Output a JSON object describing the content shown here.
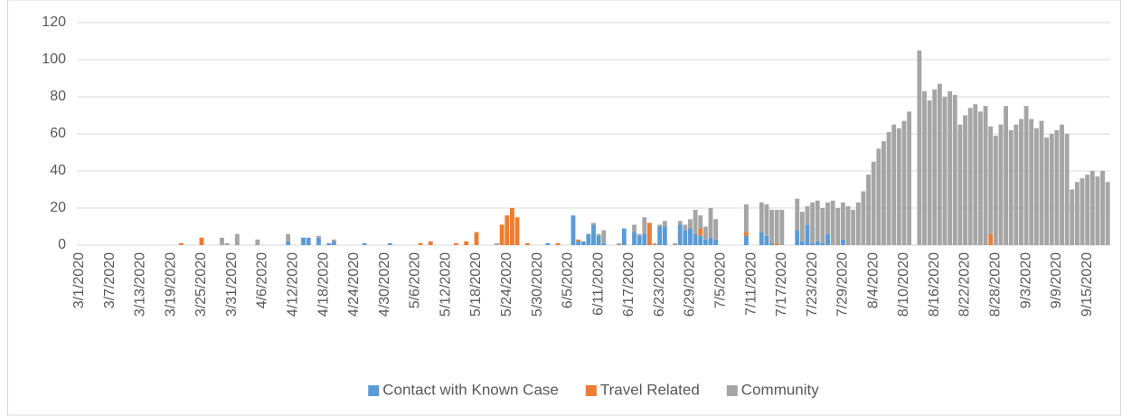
{
  "chart_data": {
    "type": "stacked_bar",
    "categories": [
      "3/1/2020",
      null,
      null,
      null,
      null,
      null,
      "3/7/2020",
      null,
      null,
      null,
      null,
      null,
      "3/13/2020",
      null,
      null,
      null,
      null,
      null,
      "3/19/2020",
      null,
      null,
      null,
      null,
      null,
      "3/25/2020",
      null,
      null,
      null,
      null,
      null,
      "3/31/2020",
      null,
      null,
      null,
      null,
      null,
      "4/6/2020",
      null,
      null,
      null,
      null,
      null,
      "4/12/2020",
      null,
      null,
      null,
      null,
      null,
      "4/18/2020",
      null,
      null,
      null,
      null,
      null,
      "4/24/2020",
      null,
      null,
      null,
      null,
      null,
      "4/30/2020",
      null,
      null,
      null,
      null,
      null,
      "5/6/2020",
      null,
      null,
      null,
      null,
      null,
      "5/12/2020",
      null,
      null,
      null,
      null,
      null,
      "5/18/2020",
      null,
      null,
      null,
      null,
      null,
      "5/24/2020",
      null,
      null,
      null,
      null,
      null,
      "5/30/2020",
      null,
      null,
      null,
      null,
      null,
      "6/5/2020",
      null,
      null,
      null,
      null,
      null,
      "6/11/2020",
      null,
      null,
      null,
      null,
      null,
      "6/17/2020",
      null,
      null,
      null,
      null,
      null,
      "6/23/2020",
      null,
      null,
      null,
      null,
      null,
      "6/29/2020",
      null,
      null,
      null,
      null,
      null,
      "7/5/2020",
      null,
      null,
      null,
      null,
      null,
      "7/11/2020",
      null,
      null,
      null,
      null,
      null,
      "7/17/2020",
      null,
      null,
      null,
      null,
      null,
      "7/23/2020",
      null,
      null,
      null,
      null,
      null,
      "7/29/2020",
      null,
      null,
      null,
      null,
      null,
      "8/4/2020",
      null,
      null,
      null,
      null,
      null,
      "8/10/2020",
      null,
      null,
      null,
      null,
      null,
      "8/16/2020",
      null,
      null,
      null,
      null,
      null,
      "8/22/2020",
      null,
      null,
      null,
      null,
      null,
      "8/28/2020",
      null,
      null,
      null,
      null,
      null,
      "9/3/2020",
      null,
      null,
      null,
      null,
      null,
      "9/9/2020",
      null,
      null,
      null,
      null,
      null,
      "9/15/2020",
      null,
      null,
      null,
      null
    ],
    "series": [
      {
        "name": "Contact with Known Case",
        "color": "#5b9bd5",
        "values": [
          0,
          0,
          0,
          0,
          0,
          0,
          0,
          0,
          0,
          0,
          0,
          0,
          0,
          0,
          0,
          0,
          0,
          0,
          0,
          0,
          0,
          0,
          0,
          0,
          0,
          0,
          0,
          0,
          0,
          0,
          0,
          0,
          0,
          0,
          0,
          0,
          0,
          0,
          0,
          0,
          0,
          2,
          0,
          0,
          4,
          4,
          0,
          4,
          0,
          1,
          2,
          0,
          0,
          0,
          0,
          0,
          1,
          0,
          0,
          0,
          0,
          1,
          0,
          0,
          0,
          0,
          0,
          0,
          0,
          0,
          0,
          0,
          0,
          0,
          0,
          0,
          0,
          0,
          0,
          0,
          0,
          0,
          0,
          0,
          0,
          0,
          0,
          0,
          0,
          0,
          0,
          0,
          1,
          0,
          0,
          0,
          0,
          16,
          2,
          2,
          6,
          11,
          5,
          1,
          0,
          0,
          0,
          9,
          0,
          7,
          5,
          6,
          0,
          0,
          10,
          10,
          0,
          0,
          11,
          8,
          9,
          6,
          5,
          3,
          4,
          3,
          0,
          0,
          0,
          0,
          0,
          5,
          0,
          0,
          7,
          5,
          1,
          0,
          0,
          0,
          0,
          8,
          2,
          11,
          1,
          2,
          1,
          6,
          0,
          0,
          3,
          0,
          0,
          0,
          0,
          0,
          0,
          0,
          0,
          0,
          0,
          0,
          0,
          0,
          0,
          0,
          0,
          0,
          0,
          0,
          0,
          0,
          0,
          0,
          0,
          0,
          0,
          0,
          0,
          0,
          0,
          0,
          0,
          0,
          0,
          0,
          0,
          0,
          0,
          0,
          0,
          0,
          0,
          0,
          0,
          0,
          0,
          0,
          0,
          0,
          0,
          0,
          0
        ]
      },
      {
        "name": "Travel Related",
        "color": "#ed7d31",
        "values": [
          0,
          0,
          0,
          0,
          0,
          0,
          0,
          0,
          0,
          0,
          0,
          0,
          0,
          0,
          0,
          0,
          0,
          0,
          0,
          0,
          1,
          0,
          0,
          0,
          4,
          0,
          0,
          0,
          0,
          0,
          0,
          0,
          0,
          0,
          0,
          0,
          0,
          0,
          0,
          0,
          0,
          0,
          0,
          0,
          0,
          0,
          0,
          0,
          0,
          0,
          0,
          0,
          0,
          0,
          0,
          0,
          0,
          0,
          0,
          0,
          0,
          0,
          0,
          0,
          0,
          0,
          0,
          1,
          0,
          2,
          0,
          0,
          0,
          0,
          1,
          0,
          2,
          0,
          7,
          0,
          0,
          0,
          0,
          11,
          16,
          20,
          15,
          0,
          1,
          0,
          0,
          0,
          0,
          0,
          1,
          0,
          0,
          0,
          1,
          0,
          0,
          0,
          0,
          0,
          0,
          0,
          0,
          0,
          0,
          0,
          0,
          0,
          12,
          0,
          0,
          0,
          0,
          0,
          0,
          0,
          0,
          0,
          4,
          0,
          0,
          0,
          0,
          0,
          0,
          0,
          0,
          2,
          0,
          0,
          0,
          0,
          0,
          1,
          0,
          0,
          0,
          0,
          0,
          0,
          0,
          0,
          0,
          0,
          0,
          0,
          0,
          0,
          0,
          0,
          0,
          0,
          0,
          0,
          0,
          0,
          0,
          0,
          0,
          0,
          0,
          0,
          0,
          0,
          0,
          0,
          0,
          0,
          0,
          0,
          0,
          0,
          0,
          0,
          0,
          6,
          0,
          0,
          0,
          0,
          0,
          0,
          0,
          0,
          0,
          0,
          0,
          0,
          0,
          0,
          0,
          0,
          0,
          0,
          0,
          0,
          0,
          0,
          0
        ]
      },
      {
        "name": "Community",
        "color": "#a5a5a5",
        "values": [
          0,
          0,
          0,
          0,
          0,
          0,
          0,
          0,
          0,
          0,
          0,
          0,
          0,
          0,
          0,
          0,
          0,
          0,
          0,
          0,
          0,
          0,
          0,
          0,
          0,
          0,
          0,
          0,
          4,
          1,
          0,
          6,
          0,
          0,
          0,
          3,
          0,
          0,
          0,
          0,
          0,
          4,
          0,
          0,
          0,
          0,
          0,
          1,
          0,
          0,
          1,
          0,
          0,
          0,
          0,
          0,
          0,
          0,
          0,
          0,
          0,
          0,
          0,
          0,
          0,
          0,
          0,
          0,
          0,
          0,
          0,
          0,
          0,
          0,
          0,
          0,
          0,
          0,
          0,
          0,
          0,
          0,
          1,
          0,
          0,
          0,
          0,
          0,
          0,
          0,
          0,
          0,
          0,
          0,
          0,
          0,
          0,
          0,
          0,
          0,
          0,
          1,
          1,
          7,
          0,
          0,
          1,
          0,
          0,
          4,
          1,
          9,
          0,
          1,
          1,
          3,
          0,
          1,
          2,
          3,
          5,
          13,
          7,
          7,
          16,
          11,
          0,
          0,
          0,
          0,
          0,
          15,
          0,
          0,
          16,
          17,
          18,
          18,
          19,
          0,
          0,
          17,
          16,
          10,
          22,
          22,
          19,
          17,
          24,
          20,
          20,
          21,
          19,
          23,
          29,
          38,
          45,
          52,
          56,
          61,
          65,
          63,
          67,
          72,
          0,
          105,
          83,
          78,
          84,
          87,
          80,
          83,
          81,
          65,
          70,
          74,
          76,
          72,
          75,
          58,
          59,
          65,
          75,
          62,
          65,
          68,
          75,
          68,
          63,
          67,
          58,
          60,
          62,
          65,
          60,
          30,
          34,
          36,
          38,
          40,
          37,
          40,
          34
        ]
      }
    ],
    "ylim": [
      0,
      120
    ],
    "yticks": [
      0,
      20,
      40,
      60,
      80,
      100,
      120
    ],
    "grid": true,
    "legend": "bottom"
  }
}
